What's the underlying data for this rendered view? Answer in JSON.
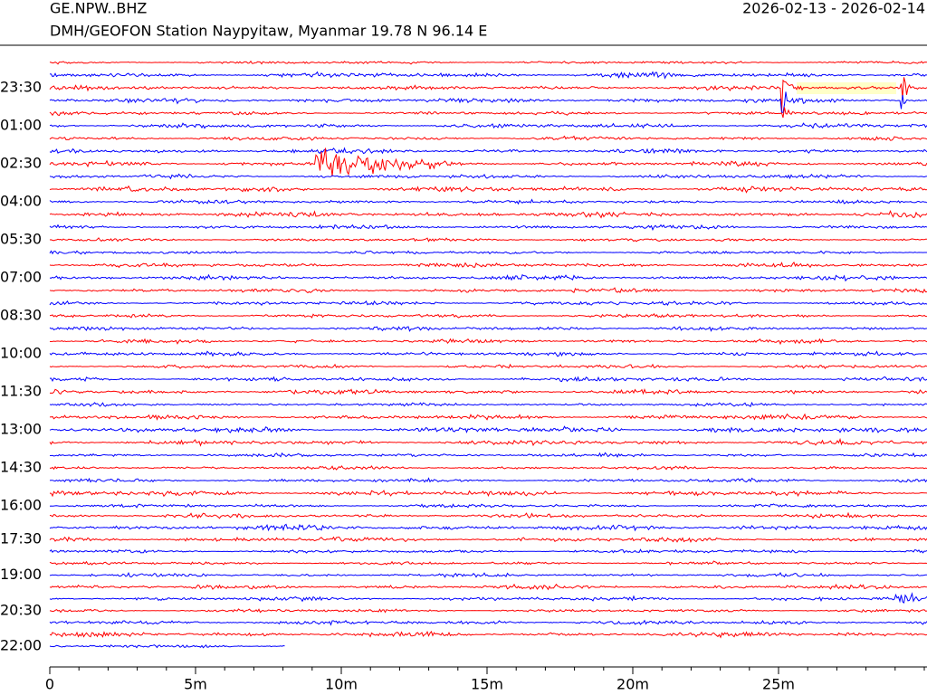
{
  "header": {
    "station": "GE.NPW..BHZ",
    "description": "DMH/GEOFON Station Naypyitaw, Myanmar  19.78 N 96.14 E",
    "date_range": "2026-02-13 - 2026-02-14"
  },
  "chart_data": {
    "type": "helicorder",
    "colors": [
      "#ff0000",
      "#0000ff"
    ],
    "xlim": [
      0,
      30
    ],
    "xticks": [
      0,
      {
        "value": 5,
        "label": "5m"
      },
      {
        "value": 10,
        "label": "10m"
      },
      {
        "value": 15,
        "label": "15m"
      },
      {
        "value": 20,
        "label": "20m"
      },
      {
        "value": 25,
        "label": "25m"
      }
    ],
    "ylabels": [
      "23:30",
      "01:00",
      "02:30",
      "04:00",
      "05:30",
      "07:00",
      "08:30",
      "10:00",
      "11:30",
      "13:00",
      "14:30",
      "16:00",
      "17:30",
      "19:00",
      "20:30",
      "22:00"
    ],
    "last_trace_end": 8.1,
    "events": [
      {
        "trace": 2,
        "start": 25.1,
        "end": 25.9
      },
      {
        "trace": 2,
        "start": 29.2,
        "end": 29.8
      },
      {
        "trace": 3,
        "start": 25.1,
        "end": 25.5
      },
      {
        "trace": 3,
        "start": 29.2,
        "end": 29.5
      },
      {
        "trace": 4,
        "start": 25.1,
        "end": 25.5
      },
      {
        "trace": 8,
        "start": 9.1,
        "end": 14.2
      },
      {
        "trace": 4,
        "start": 0,
        "end": 1.7
      },
      {
        "trace": 43,
        "start": 29.0,
        "end": 30
      }
    ]
  }
}
